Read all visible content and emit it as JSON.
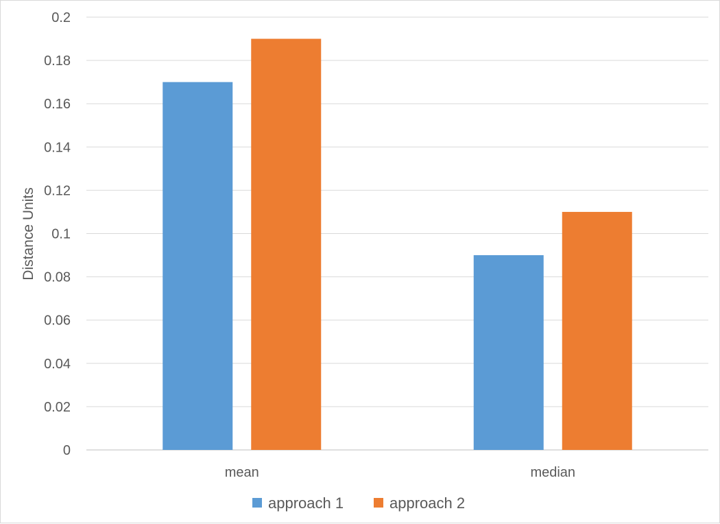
{
  "chart_data": {
    "type": "bar",
    "title": "",
    "xlabel": "",
    "ylabel": "Distance Units",
    "categories": [
      "mean",
      "median"
    ],
    "series": [
      {
        "name": "approach 1",
        "values": [
          0.17,
          0.09
        ],
        "color": "#5B9BD5"
      },
      {
        "name": "approach 2",
        "values": [
          0.19,
          0.11
        ],
        "color": "#ED7D31"
      }
    ],
    "ylim": [
      0,
      0.2
    ],
    "yticks": [
      "0",
      "0.02",
      "0.04",
      "0.06",
      "0.08",
      "0.1",
      "0.12",
      "0.14",
      "0.16",
      "0.18",
      "0.2"
    ],
    "grid": true,
    "legend_position": "bottom"
  }
}
